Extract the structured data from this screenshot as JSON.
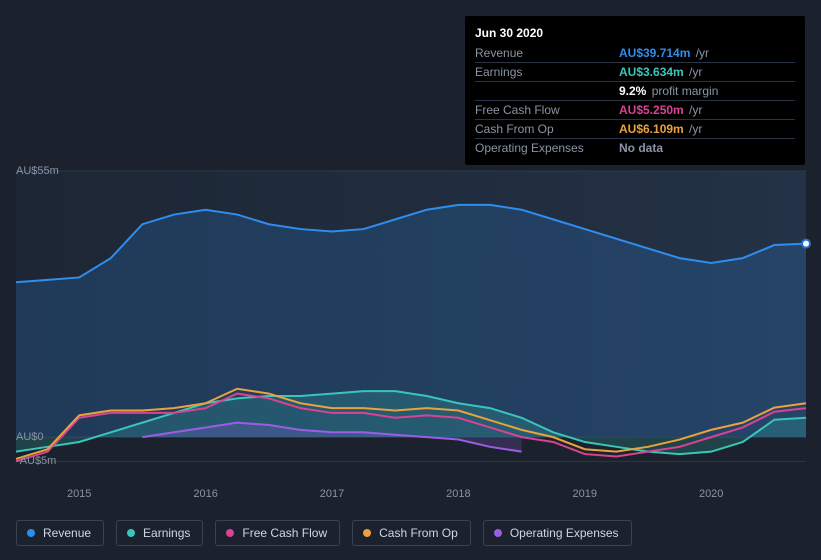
{
  "tooltip": {
    "title": "Jun 30 2020",
    "rows": [
      {
        "metric": "Revenue",
        "value": "AU$39.714m",
        "unit": "/yr",
        "color": "#2f8ded"
      },
      {
        "metric": "Earnings",
        "value": "AU$3.634m",
        "unit": "/yr",
        "color": "#39c6b9"
      },
      {
        "metric": "",
        "value": "9.2%",
        "unit": "profit margin",
        "color": "#ffffff"
      },
      {
        "metric": "Free Cash Flow",
        "value": "AU$5.250m",
        "unit": "/yr",
        "color": "#d84394"
      },
      {
        "metric": "Cash From Op",
        "value": "AU$6.109m",
        "unit": "/yr",
        "color": "#e8a33d"
      },
      {
        "metric": "Operating Expenses",
        "value": "No data",
        "unit": "",
        "color": "#8a94a6"
      }
    ]
  },
  "chart": {
    "type": "area",
    "background_color": "#1b222d",
    "plot_bg_from": "#233246",
    "plot_bg_to": "#1d2634",
    "grid_color": "#2e3846",
    "label_color": "#8a94a6",
    "label_fontsize": 11,
    "line_width": 2,
    "x_domain": [
      2014.5,
      2020.75
    ],
    "y_domain": [
      -7,
      55
    ],
    "y_ticks": [
      {
        "v": 55,
        "label": "AU$55m"
      },
      {
        "v": 0,
        "label": "AU$0"
      },
      {
        "v": -5,
        "label": "-AU$5m"
      }
    ],
    "x_ticks": [
      {
        "v": 2015,
        "label": "2015"
      },
      {
        "v": 2016,
        "label": "2016"
      },
      {
        "v": 2017,
        "label": "2017"
      },
      {
        "v": 2018,
        "label": "2018"
      },
      {
        "v": 2019,
        "label": "2019"
      },
      {
        "v": 2020,
        "label": "2020"
      }
    ],
    "cursor_x": 2020.75,
    "cursor_series_ix": 0,
    "series": [
      {
        "key": "revenue",
        "label": "Revenue",
        "color": "#2f8ded",
        "area": true,
        "points": [
          [
            2014.5,
            32
          ],
          [
            2014.75,
            32.5
          ],
          [
            2015,
            33
          ],
          [
            2015.25,
            37
          ],
          [
            2015.5,
            44
          ],
          [
            2015.75,
            46
          ],
          [
            2016,
            47
          ],
          [
            2016.25,
            46
          ],
          [
            2016.5,
            44
          ],
          [
            2016.75,
            43
          ],
          [
            2017,
            42.5
          ],
          [
            2017.25,
            43
          ],
          [
            2017.5,
            45
          ],
          [
            2017.75,
            47
          ],
          [
            2018,
            48
          ],
          [
            2018.25,
            48
          ],
          [
            2018.5,
            47
          ],
          [
            2018.75,
            45
          ],
          [
            2019,
            43
          ],
          [
            2019.25,
            41
          ],
          [
            2019.5,
            39
          ],
          [
            2019.75,
            37
          ],
          [
            2020,
            36
          ],
          [
            2020.25,
            37
          ],
          [
            2020.5,
            39.7
          ],
          [
            2020.75,
            40
          ]
        ]
      },
      {
        "key": "earnings",
        "label": "Earnings",
        "color": "#39c6b9",
        "area": true,
        "points": [
          [
            2014.5,
            -3
          ],
          [
            2014.75,
            -2
          ],
          [
            2015,
            -1
          ],
          [
            2015.25,
            1
          ],
          [
            2015.5,
            3
          ],
          [
            2015.75,
            5
          ],
          [
            2016,
            7
          ],
          [
            2016.25,
            8
          ],
          [
            2016.5,
            8.5
          ],
          [
            2016.75,
            8.5
          ],
          [
            2017,
            9
          ],
          [
            2017.25,
            9.5
          ],
          [
            2017.5,
            9.5
          ],
          [
            2017.75,
            8.5
          ],
          [
            2018,
            7
          ],
          [
            2018.25,
            6
          ],
          [
            2018.5,
            4
          ],
          [
            2018.75,
            1
          ],
          [
            2019,
            -1
          ],
          [
            2019.25,
            -2
          ],
          [
            2019.5,
            -3
          ],
          [
            2019.75,
            -3.5
          ],
          [
            2020,
            -3
          ],
          [
            2020.25,
            -1
          ],
          [
            2020.5,
            3.6
          ],
          [
            2020.75,
            4
          ]
        ]
      },
      {
        "key": "fcf",
        "label": "Free Cash Flow",
        "color": "#d84394",
        "area": false,
        "points": [
          [
            2014.5,
            -5
          ],
          [
            2014.75,
            -3
          ],
          [
            2015,
            4
          ],
          [
            2015.25,
            5
          ],
          [
            2015.5,
            5
          ],
          [
            2015.75,
            5
          ],
          [
            2016,
            6
          ],
          [
            2016.25,
            9
          ],
          [
            2016.5,
            8
          ],
          [
            2016.75,
            6
          ],
          [
            2017,
            5
          ],
          [
            2017.25,
            5
          ],
          [
            2017.5,
            4
          ],
          [
            2017.75,
            4.5
          ],
          [
            2018,
            4
          ],
          [
            2018.25,
            2
          ],
          [
            2018.5,
            0
          ],
          [
            2018.75,
            -1
          ],
          [
            2019,
            -3.5
          ],
          [
            2019.25,
            -4
          ],
          [
            2019.5,
            -3
          ],
          [
            2019.75,
            -2
          ],
          [
            2020,
            0
          ],
          [
            2020.25,
            2
          ],
          [
            2020.5,
            5.25
          ],
          [
            2020.75,
            6
          ]
        ]
      },
      {
        "key": "cfo",
        "label": "Cash From Op",
        "color": "#e8a33d",
        "area": false,
        "points": [
          [
            2014.5,
            -4.5
          ],
          [
            2014.75,
            -2.5
          ],
          [
            2015,
            4.5
          ],
          [
            2015.25,
            5.5
          ],
          [
            2015.5,
            5.5
          ],
          [
            2015.75,
            6
          ],
          [
            2016,
            7
          ],
          [
            2016.25,
            10
          ],
          [
            2016.5,
            9
          ],
          [
            2016.75,
            7
          ],
          [
            2017,
            6
          ],
          [
            2017.25,
            6
          ],
          [
            2017.5,
            5.5
          ],
          [
            2017.75,
            6
          ],
          [
            2018,
            5.5
          ],
          [
            2018.25,
            3.5
          ],
          [
            2018.5,
            1.5
          ],
          [
            2018.75,
            0
          ],
          [
            2019,
            -2.5
          ],
          [
            2019.25,
            -3
          ],
          [
            2019.5,
            -2
          ],
          [
            2019.75,
            -0.5
          ],
          [
            2020,
            1.5
          ],
          [
            2020.25,
            3
          ],
          [
            2020.5,
            6.1
          ],
          [
            2020.75,
            7
          ]
        ]
      },
      {
        "key": "opex",
        "label": "Operating Expenses",
        "color": "#9b5de5",
        "area": true,
        "points": [
          [
            2015.5,
            0
          ],
          [
            2015.75,
            1
          ],
          [
            2016,
            2
          ],
          [
            2016.25,
            3
          ],
          [
            2016.5,
            2.5
          ],
          [
            2016.75,
            1.5
          ],
          [
            2017,
            1
          ],
          [
            2017.25,
            1
          ],
          [
            2017.5,
            0.5
          ],
          [
            2017.75,
            0
          ],
          [
            2018,
            -0.5
          ],
          [
            2018.25,
            -2
          ],
          [
            2018.5,
            -3
          ]
        ]
      }
    ]
  },
  "legend": [
    {
      "key": "revenue",
      "label": "Revenue",
      "color": "#2f8ded"
    },
    {
      "key": "earnings",
      "label": "Earnings",
      "color": "#39c6b9"
    },
    {
      "key": "fcf",
      "label": "Free Cash Flow",
      "color": "#d84394"
    },
    {
      "key": "cfo",
      "label": "Cash From Op",
      "color": "#e8a33d"
    },
    {
      "key": "opex",
      "label": "Operating Expenses",
      "color": "#9b5de5"
    }
  ]
}
